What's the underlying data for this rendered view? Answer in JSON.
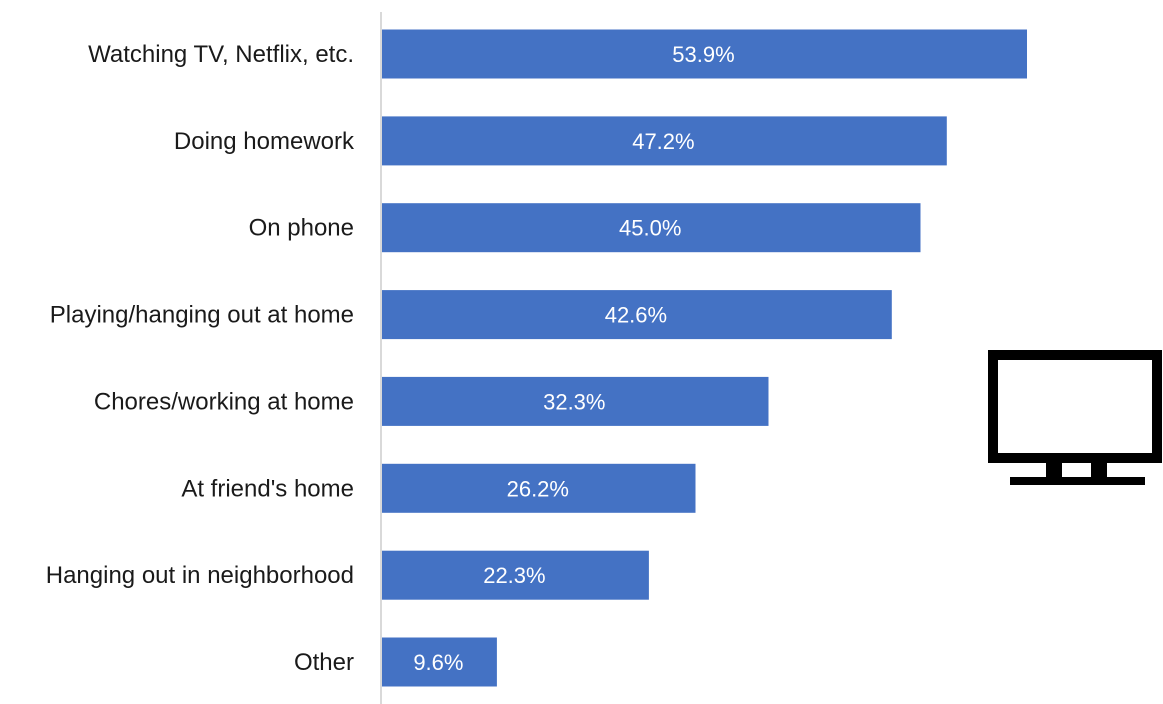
{
  "chart_data": {
    "type": "bar",
    "orientation": "horizontal",
    "categories": [
      "Watching TV, Netflix, etc.",
      "Doing homework",
      "On phone",
      "Playing/hanging out at home",
      "Chores/working at home",
      "At friend's home",
      "Hanging out in neighborhood",
      "Other"
    ],
    "values": [
      53.9,
      47.2,
      45.0,
      42.6,
      32.3,
      26.2,
      22.3,
      9.6
    ],
    "value_labels": [
      "53.9%",
      "47.2%",
      "45.0%",
      "42.6%",
      "32.3%",
      "26.2%",
      "22.3%",
      "9.6%"
    ],
    "xlim": [
      0,
      60
    ],
    "grid": false,
    "legend": "none",
    "bar_color": "#4472c4",
    "axis_color": "#d9d9d9",
    "label_color": "#1a1a1a",
    "value_label_color": "#ffffff"
  },
  "decoration": {
    "icon": "television-icon",
    "icon_color": "#000000"
  }
}
